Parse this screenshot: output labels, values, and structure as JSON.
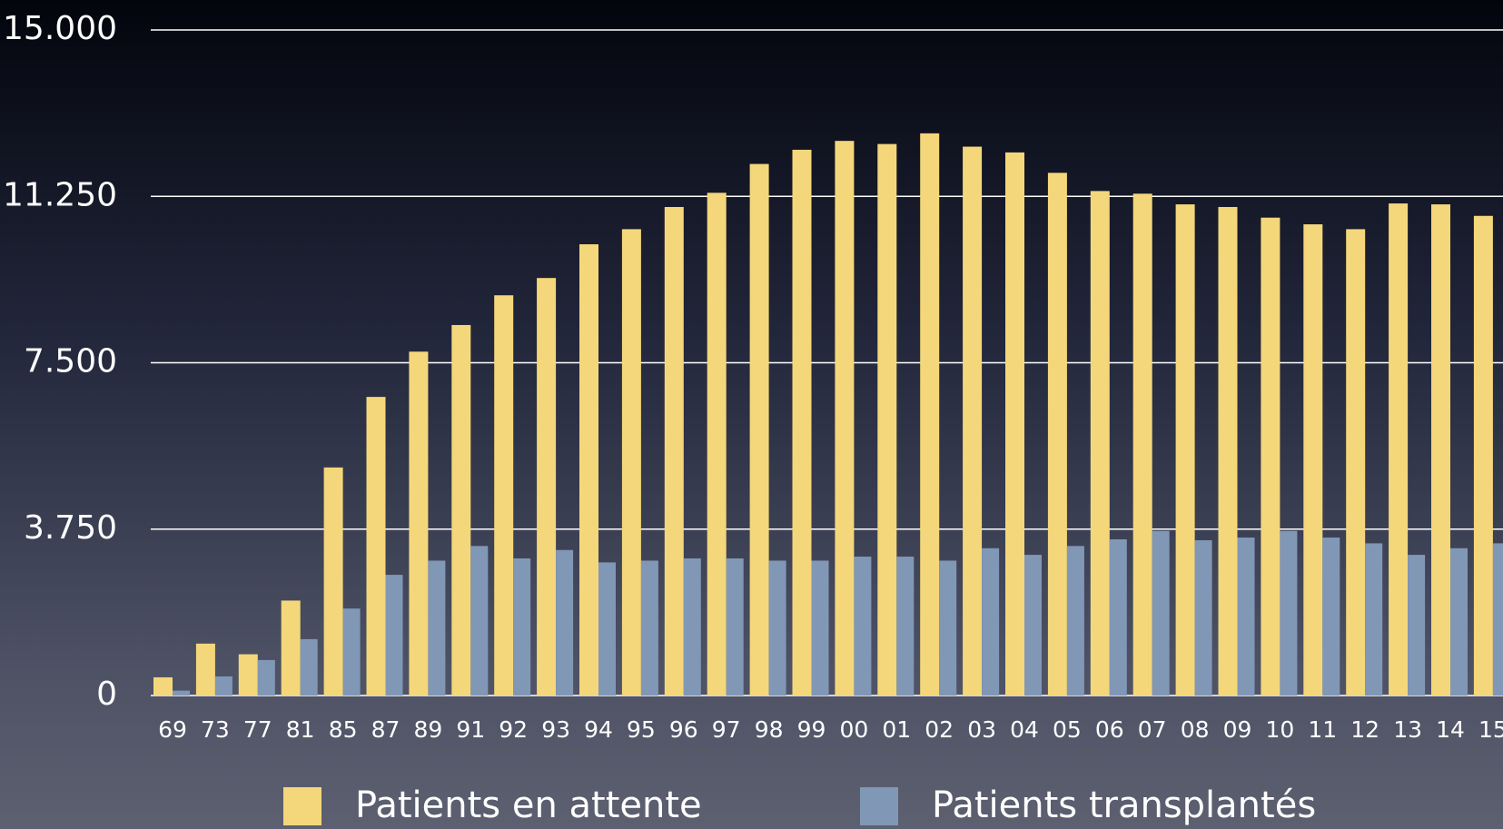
{
  "chart_data": {
    "type": "bar",
    "categories": [
      "69",
      "73",
      "77",
      "81",
      "85",
      "87",
      "89",
      "91",
      "92",
      "93",
      "94",
      "95",
      "96",
      "97",
      "98",
      "99",
      "00",
      "01",
      "02",
      "03",
      "04",
      "05",
      "06",
      "07",
      "08",
      "09",
      "10",
      "11",
      "12",
      "13",
      "14",
      "15"
    ],
    "series": [
      {
        "name": "Patients en attente",
        "color": "#f4d77a",
        "values": [
          410,
          1170,
          930,
          2140,
          5140,
          6730,
          7750,
          8350,
          9020,
          9410,
          10170,
          10510,
          11010,
          11330,
          11980,
          12300,
          12500,
          12430,
          12670,
          12370,
          12240,
          11780,
          11370,
          11310,
          11070,
          11010,
          10770,
          10620,
          10510,
          11090,
          11070,
          10810
        ]
      },
      {
        "name": "Patients transplantés",
        "color": "#8197b6",
        "values": [
          110,
          430,
          800,
          1270,
          1960,
          2720,
          3040,
          3370,
          3090,
          3280,
          3000,
          3040,
          3090,
          3090,
          3040,
          3040,
          3130,
          3130,
          3040,
          3320,
          3170,
          3370,
          3520,
          3710,
          3500,
          3560,
          3710,
          3560,
          3430,
          3170,
          3320,
          3430
        ]
      }
    ],
    "ylim": [
      0,
      15000
    ],
    "yticks": [
      0,
      {
        "value": 3750,
        "label": "3.750"
      },
      {
        "value": 7500,
        "label": "7.500"
      },
      {
        "value": 11250,
        "label": "11.250"
      },
      {
        "value": 15000,
        "label": "15.000"
      }
    ],
    "grid": true
  }
}
